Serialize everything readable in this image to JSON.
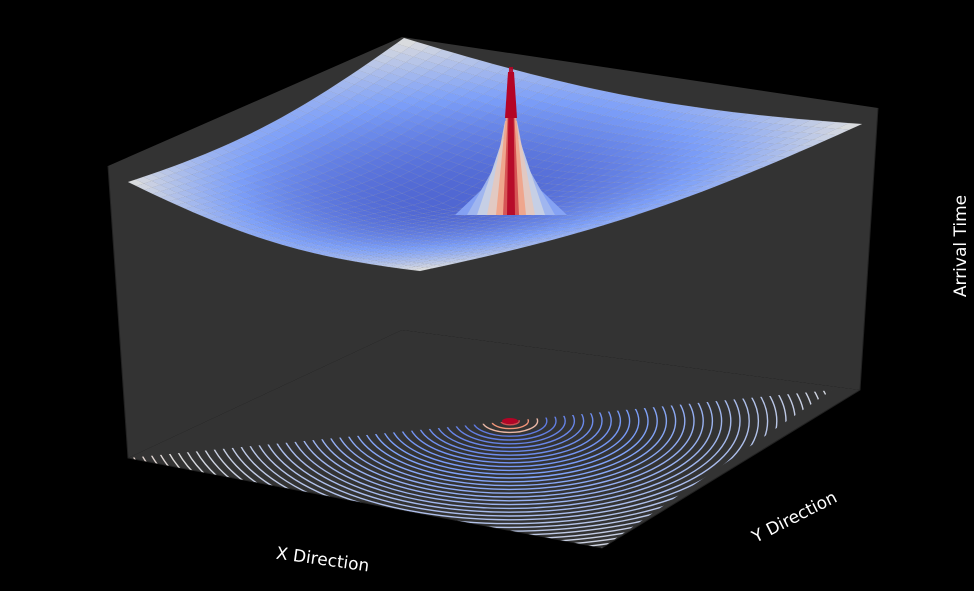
{
  "chart_data": {
    "type": "surface3d",
    "subtype": "surface with projected contour map on floor",
    "xlabel": "X Direction",
    "ylabel": "Y Direction",
    "zlabel": "Arrival Time",
    "colormap": "coolwarm",
    "grid": false,
    "pane_color": "#333333",
    "background_color": "#000000",
    "text_color": "#ffffff",
    "peak": {
      "x": 0,
      "y": 0
    }
  }
}
